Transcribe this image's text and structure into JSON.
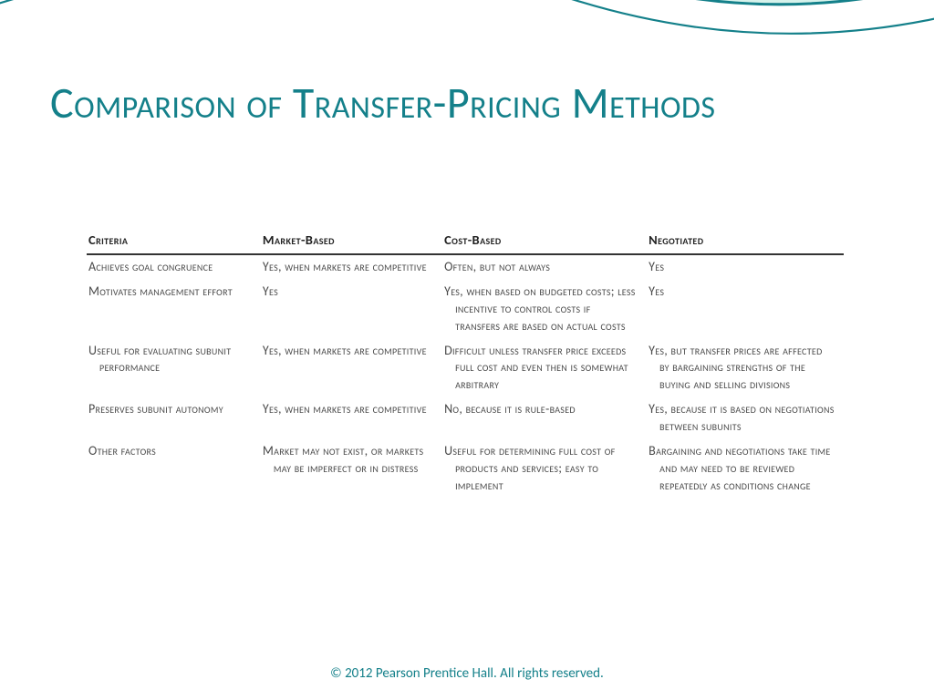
{
  "colors": {
    "title": "#14808a",
    "swoosh_fill": "#d6f2eb",
    "swoosh_stroke": "#14808a",
    "table_text": "#4a4a4a",
    "header_text": "#222222",
    "footer": "#14808a"
  },
  "title": "Comparison of Transfer-Pricing Methods",
  "table": {
    "columns": [
      "Criteria",
      "Market-Based",
      "Cost-Based",
      "Negotiated"
    ],
    "rows": [
      [
        "Achieves goal congruence",
        "Yes, when markets are competitive",
        "Often, but not always",
        "Yes"
      ],
      [
        "Motivates management effort",
        "Yes",
        "Yes, when based on budgeted costs; less incentive to control costs if transfers are based on actual costs",
        "Yes"
      ],
      [
        "Useful for evaluating subunit performance",
        "Yes, when markets are competitive",
        "Difficult unless transfer price exceeds full cost and even then is somewhat arbitrary",
        "Yes, but transfer prices are affected by bargaining strengths of the buying and selling divisions"
      ],
      [
        "Preserves subunit autonomy",
        "Yes, when markets are competitive",
        "No, because it is rule-based",
        "Yes, because it is based on negotiations between subunits"
      ],
      [
        "Other factors",
        "Market may not exist, or markets may be imperfect or in distress",
        "Useful for determining full cost of products and services; easy to implement",
        "Bargaining and negotiations take time and may need to be reviewed repeatedly as conditions change"
      ]
    ]
  },
  "footer": "© 2012 Pearson Prentice Hall. All rights reserved."
}
